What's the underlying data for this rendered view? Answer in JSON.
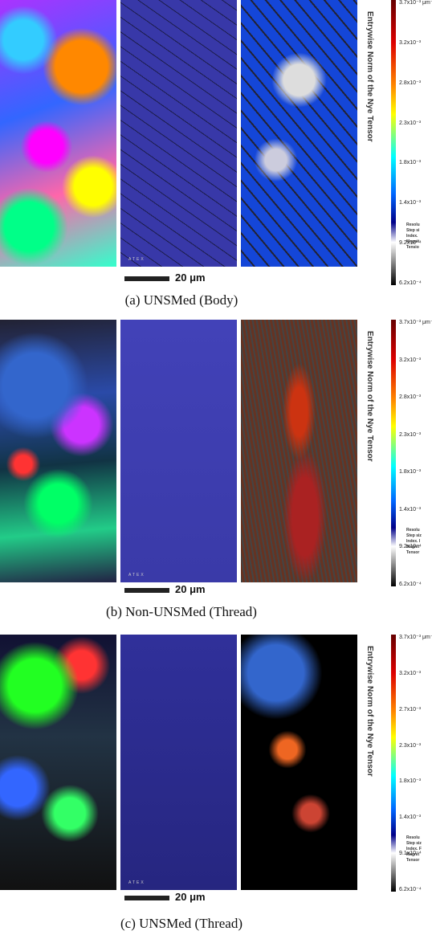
{
  "panels": [
    {
      "colorbar_title": "Entrywise Norm of the Nye Tensor",
      "colorbar_ticks": [
        "3.7x10⁻³ μm⁻¹",
        "3.2x10⁻³",
        "2.8x10⁻³",
        "2.3x10⁻³",
        "1.8x10⁻³",
        "1.4x10⁻³",
        "9.2x10⁻⁴",
        "6.2x10⁻⁴"
      ],
      "image_label": "ATEX",
      "side_notes": [
        "Resolu",
        "Step si",
        "Index.",
        "Magnit",
        "Tensio"
      ],
      "scale_bar": "20 μm",
      "caption": "(a) UNSMed (Body)"
    },
    {
      "colorbar_title": "Entrywise Norm of the Nye Tensor",
      "colorbar_ticks": [
        "3.7x10⁻³ μm⁻¹",
        "3.2x10⁻³",
        "2.8x10⁻³",
        "2.3x10⁻³",
        "1.8x10⁻³",
        "1.4x10⁻³",
        "9.2x10⁻⁴",
        "6.2x10⁻⁴"
      ],
      "image_label": "ATEX",
      "side_notes": [
        "Resolu",
        "Step siz",
        "Index. I",
        "Magnit",
        "Tensor"
      ],
      "scale_bar": "20 μm",
      "caption": "(b) Non-UNSMed (Thread)"
    },
    {
      "colorbar_title": "Entrywise Norm of the Nye Tensor",
      "colorbar_ticks": [
        "3.7x10⁻³ μm⁻¹",
        "3.2x10⁻³",
        "2.7x10⁻³",
        "2.3x10⁻³",
        "1.8x10⁻³",
        "1.4x10⁻³",
        "9.1x10⁻⁴",
        "6.2x10⁻⁴"
      ],
      "image_label": "ATEX",
      "side_notes": [
        "Resolu",
        "Step siz",
        "Index. F",
        "Magnit",
        "Tensor"
      ],
      "scale_bar": "20 μm",
      "caption": "(c) UNSMed (Thread)"
    }
  ]
}
